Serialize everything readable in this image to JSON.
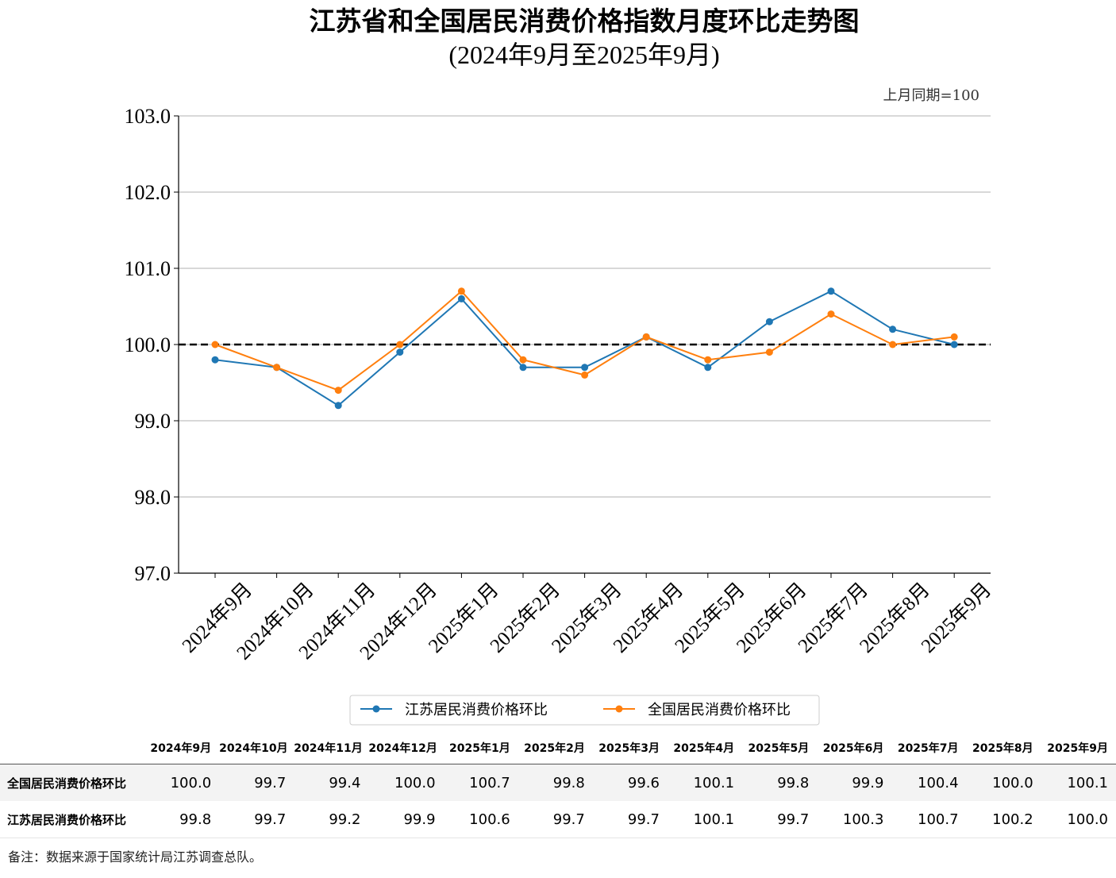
{
  "chart_data": {
    "type": "line",
    "title": "江苏省和全国居民消费价格指数月度环比走势图",
    "subtitle": "(2024年9月至2025年9月)",
    "unit_note": "上月同期=100",
    "categories": [
      "2024年9月",
      "2024年10月",
      "2024年11月",
      "2024年12月",
      "2025年1月",
      "2025年2月",
      "2025年3月",
      "2025年4月",
      "2025年5月",
      "2025年6月",
      "2025年7月",
      "2025年8月",
      "2025年9月"
    ],
    "ylim": [
      97.0,
      103.0
    ],
    "yticks": [
      "97.0",
      "98.0",
      "99.0",
      "100.0",
      "101.0",
      "102.0",
      "103.0"
    ],
    "reference_line": 100.0,
    "grid": "horizontal",
    "legend_position": "bottom-center",
    "series": [
      {
        "name": "江苏居民消费价格环比",
        "color": "#1f77b4",
        "values": [
          99.8,
          99.7,
          99.2,
          99.9,
          100.6,
          99.7,
          99.7,
          100.1,
          99.7,
          100.3,
          100.7,
          100.2,
          100.0
        ]
      },
      {
        "name": "全国居民消费价格环比",
        "color": "#ff7f0e",
        "values": [
          100.0,
          99.7,
          99.4,
          100.0,
          100.7,
          99.8,
          99.6,
          100.1,
          99.8,
          99.9,
          100.4,
          100.0,
          100.1
        ]
      }
    ]
  },
  "table": {
    "headers": [
      "2024年9月",
      "2024年10月",
      "2024年11月",
      "2024年12月",
      "2025年1月",
      "2025年2月",
      "2025年3月",
      "2025年4月",
      "2025年5月",
      "2025年6月",
      "2025年7月",
      "2025年8月",
      "2025年9月"
    ],
    "rows": [
      {
        "label": "全国居民消费价格环比",
        "values": [
          "100.0",
          "99.7",
          "99.4",
          "100.0",
          "100.7",
          "99.8",
          "99.6",
          "100.1",
          "99.8",
          "99.9",
          "100.4",
          "100.0",
          "100.1"
        ]
      },
      {
        "label": "江苏居民消费价格环比",
        "values": [
          "99.8",
          "99.7",
          "99.2",
          "99.9",
          "100.6",
          "99.7",
          "99.7",
          "100.1",
          "99.7",
          "100.3",
          "100.7",
          "100.2",
          "100.0"
        ]
      }
    ]
  },
  "note": "备注：数据来源于国家统计局江苏调查总队。"
}
